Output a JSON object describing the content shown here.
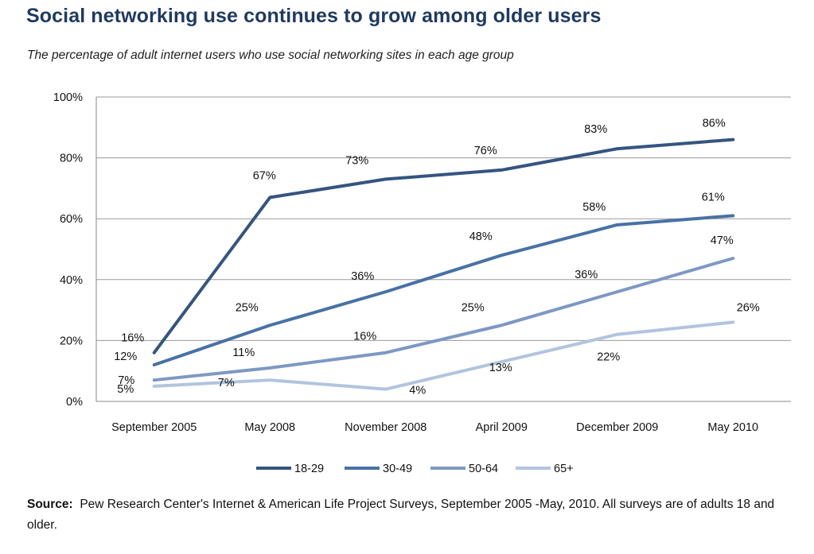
{
  "chart_data": {
    "type": "line",
    "title": "Social networking use continues to grow among older users",
    "subtitle": "The percentage of adult internet users who use social networking sites in each age group",
    "categories": [
      "September 2005",
      "May 2008",
      "November 2008",
      "April 2009",
      "December 2009",
      "May 2010"
    ],
    "ylim": [
      0,
      100
    ],
    "yticks": [
      "0%",
      "20%",
      "40%",
      "60%",
      "80%",
      "100%"
    ],
    "grid": true,
    "legend": "bottom",
    "series": [
      {
        "name": "18-29",
        "color": "#34557f",
        "values": [
          16,
          67,
          73,
          76,
          83,
          86
        ],
        "labels": [
          "16%",
          "67%",
          "73%",
          "76%",
          "83%",
          "86%"
        ]
      },
      {
        "name": "30-49",
        "color": "#4872a4",
        "values": [
          12,
          25,
          36,
          48,
          58,
          61
        ],
        "labels": [
          "12%",
          "25%",
          "36%",
          "48%",
          "58%",
          "61%"
        ]
      },
      {
        "name": "50-64",
        "color": "#7e98c3",
        "values": [
          7,
          11,
          16,
          25,
          36,
          47
        ],
        "labels": [
          "7%",
          "11%",
          "16%",
          "25%",
          "36%",
          "47%"
        ]
      },
      {
        "name": "65+",
        "color": "#b2c4de",
        "values": [
          5,
          7,
          4,
          13,
          22,
          26
        ],
        "labels": [
          "5%",
          "7%",
          "4%",
          "13%",
          "22%",
          "26%"
        ]
      }
    ]
  },
  "source": {
    "label": "Source:",
    "text": "Pew Research Center's Internet & American Life Project Surveys, September 2005 -May, 2010. All surveys are of adults 18 and older."
  }
}
